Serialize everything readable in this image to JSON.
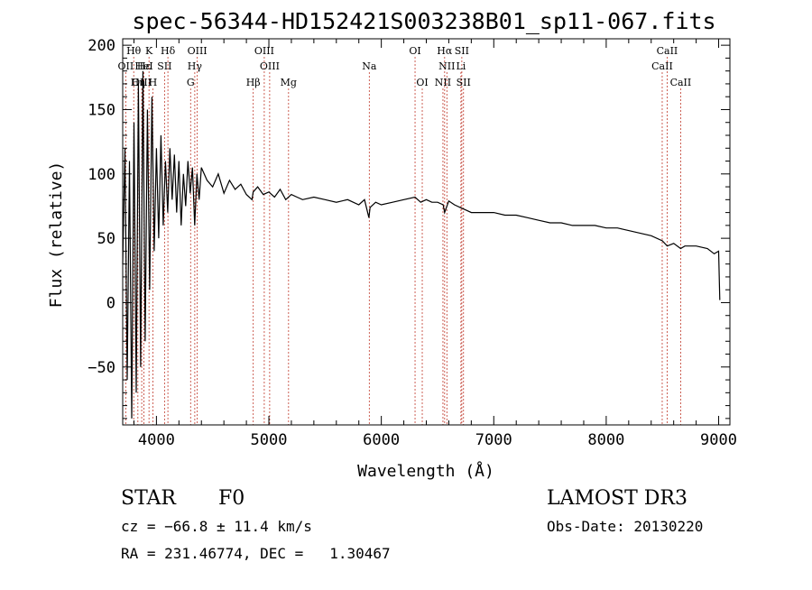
{
  "chart_data": {
    "type": "line",
    "title": "spec-56344-HD152421S003238B01_sp11-067.fits",
    "xlabel": "Wavelength (Å)",
    "ylabel": "Flux (relative)",
    "xlim": [
      3700,
      9100
    ],
    "ylim": [
      -95,
      205
    ],
    "x_ticks": [
      4000,
      5000,
      6000,
      7000,
      8000,
      9000
    ],
    "y_ticks": [
      -50,
      0,
      50,
      100,
      150,
      200
    ],
    "grid": false,
    "series": [
      {
        "name": "flux",
        "x": [
          3700,
          3720,
          3740,
          3760,
          3780,
          3800,
          3820,
          3840,
          3860,
          3880,
          3900,
          3920,
          3940,
          3960,
          3980,
          4000,
          4020,
          4040,
          4060,
          4080,
          4100,
          4120,
          4140,
          4160,
          4180,
          4200,
          4220,
          4240,
          4260,
          4280,
          4300,
          4320,
          4340,
          4360,
          4380,
          4400,
          4450,
          4500,
          4550,
          4600,
          4650,
          4700,
          4750,
          4800,
          4850,
          4860,
          4900,
          4950,
          5000,
          5050,
          5100,
          5150,
          5200,
          5250,
          5300,
          5400,
          5500,
          5600,
          5700,
          5800,
          5850,
          5890,
          5900,
          5950,
          6000,
          6100,
          6200,
          6300,
          6350,
          6400,
          6450,
          6500,
          6550,
          6563,
          6600,
          6650,
          6700,
          6750,
          6800,
          6900,
          7000,
          7100,
          7200,
          7300,
          7400,
          7500,
          7600,
          7700,
          7800,
          7900,
          8000,
          8100,
          8200,
          8300,
          8400,
          8500,
          8542,
          8600,
          8662,
          8700,
          8800,
          8900,
          8960,
          9000,
          9010
        ],
        "values": [
          30,
          120,
          -60,
          110,
          -90,
          140,
          -70,
          170,
          -50,
          180,
          -30,
          150,
          10,
          160,
          40,
          120,
          50,
          130,
          60,
          110,
          70,
          120,
          80,
          115,
          70,
          110,
          60,
          100,
          75,
          110,
          85,
          105,
          60,
          100,
          80,
          105,
          95,
          90,
          100,
          85,
          95,
          88,
          92,
          84,
          80,
          86,
          90,
          84,
          86,
          82,
          88,
          80,
          84,
          82,
          80,
          82,
          80,
          78,
          80,
          76,
          80,
          66,
          74,
          78,
          76,
          78,
          80,
          82,
          78,
          80,
          78,
          78,
          76,
          70,
          79,
          76,
          74,
          72,
          70,
          70,
          70,
          68,
          68,
          66,
          64,
          62,
          62,
          60,
          60,
          60,
          58,
          58,
          56,
          54,
          52,
          48,
          44,
          46,
          42,
          44,
          44,
          42,
          38,
          40,
          2
        ]
      }
    ],
    "spectral_lines": [
      {
        "label": "Hθ",
        "wavelength": 3798,
        "row": 0
      },
      {
        "label": "K",
        "wavelength": 3934,
        "row": 0
      },
      {
        "label": "Hδ",
        "wavelength": 4102,
        "row": 0
      },
      {
        "label": "OIII",
        "wavelength": 4363,
        "row": 0
      },
      {
        "label": "OIII",
        "wavelength": 4959,
        "row": 0
      },
      {
        "label": "OI",
        "wavelength": 6300,
        "row": 0
      },
      {
        "label": "Hα",
        "wavelength": 6563,
        "row": 0
      },
      {
        "label": "SII",
        "wavelength": 6716,
        "row": 0
      },
      {
        "label": "CaII",
        "wavelength": 8542,
        "row": 0
      },
      {
        "label": "OII",
        "wavelength": 3727,
        "row": 1
      },
      {
        "label": "Hε",
        "wavelength": 3889,
        "row": 1
      },
      {
        "label": "HeI",
        "wavelength": 3889,
        "row": 1
      },
      {
        "label": "SII",
        "wavelength": 4072,
        "row": 1
      },
      {
        "label": "Hγ",
        "wavelength": 4341,
        "row": 1
      },
      {
        "label": "OIII",
        "wavelength": 5007,
        "row": 1
      },
      {
        "label": "Na",
        "wavelength": 5893,
        "row": 1
      },
      {
        "label": "NII",
        "wavelength": 6583,
        "row": 1
      },
      {
        "label": "Li",
        "wavelength": 6708,
        "row": 1
      },
      {
        "label": "CaII",
        "wavelength": 8498,
        "row": 1
      },
      {
        "label": "OIII",
        "wavelength": 3869,
        "row": 2
      },
      {
        "label": "Hη",
        "wavelength": 3835,
        "row": 2
      },
      {
        "label": "H",
        "wavelength": 3968,
        "row": 2
      },
      {
        "label": "G",
        "wavelength": 4304,
        "row": 2
      },
      {
        "label": "Hβ",
        "wavelength": 4861,
        "row": 2
      },
      {
        "label": "Mg",
        "wavelength": 5175,
        "row": 2
      },
      {
        "label": "OI",
        "wavelength": 6364,
        "row": 2
      },
      {
        "label": "NII",
        "wavelength": 6548,
        "row": 2
      },
      {
        "label": "SII",
        "wavelength": 6731,
        "row": 2
      },
      {
        "label": "CaII",
        "wavelength": 8662,
        "row": 2
      }
    ]
  },
  "info": {
    "object_class": "STAR",
    "subclass": "F0",
    "survey": "LAMOST DR3",
    "cz": "cz = −66.8 ± 11.4 km/s",
    "obs_date": "Obs-Date: 20130220",
    "coords": "RA = 231.46774, DEC =   1.30467"
  },
  "colors": {
    "spectrum": "#000000",
    "line_marker": "#c0392b",
    "axes": "#000000"
  }
}
